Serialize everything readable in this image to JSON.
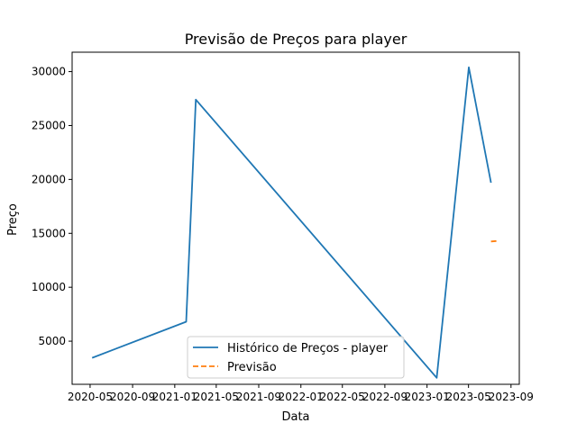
{
  "chart_data": {
    "type": "line",
    "title": "Previsão de Preços para player",
    "xlabel": "Data",
    "ylabel": "Preço",
    "xlim": [
      "2020-03-10",
      "2023-09-25"
    ],
    "ylim": [
      1000,
      31800
    ],
    "x_ticks": [
      {
        "date": "2020-05-01",
        "label": "2020-05"
      },
      {
        "date": "2020-09-01",
        "label": "2020-09"
      },
      {
        "date": "2021-01-01",
        "label": "2021-01"
      },
      {
        "date": "2021-05-01",
        "label": "2021-05"
      },
      {
        "date": "2021-09-01",
        "label": "2021-09"
      },
      {
        "date": "2022-01-01",
        "label": "2022-01"
      },
      {
        "date": "2022-05-01",
        "label": "2022-05"
      },
      {
        "date": "2022-09-01",
        "label": "2022-09"
      },
      {
        "date": "2023-01-01",
        "label": "2023-01"
      },
      {
        "date": "2023-05-01",
        "label": "2023-05"
      },
      {
        "date": "2023-09-01",
        "label": "2023-09"
      }
    ],
    "y_ticks": [
      5000,
      10000,
      15000,
      20000,
      25000,
      30000
    ],
    "series": [
      {
        "name": "Histórico de Preços - player",
        "color": "#1f77b4",
        "dash": "solid",
        "points": [
          {
            "x": "2020-05-07",
            "y": 3450
          },
          {
            "x": "2021-02-03",
            "y": 6800
          },
          {
            "x": "2021-03-03",
            "y": 27400
          },
          {
            "x": "2023-01-29",
            "y": 1600
          },
          {
            "x": "2023-05-02",
            "y": 30400
          },
          {
            "x": "2023-07-05",
            "y": 19700
          }
        ]
      },
      {
        "name": "Previsão",
        "color": "#ff7f0e",
        "dash": "dashed",
        "points": [
          {
            "x": "2023-07-05",
            "y": 14250
          },
          {
            "x": "2023-07-25",
            "y": 14300
          }
        ]
      }
    ],
    "legend": "bottom-center",
    "grid": false
  }
}
